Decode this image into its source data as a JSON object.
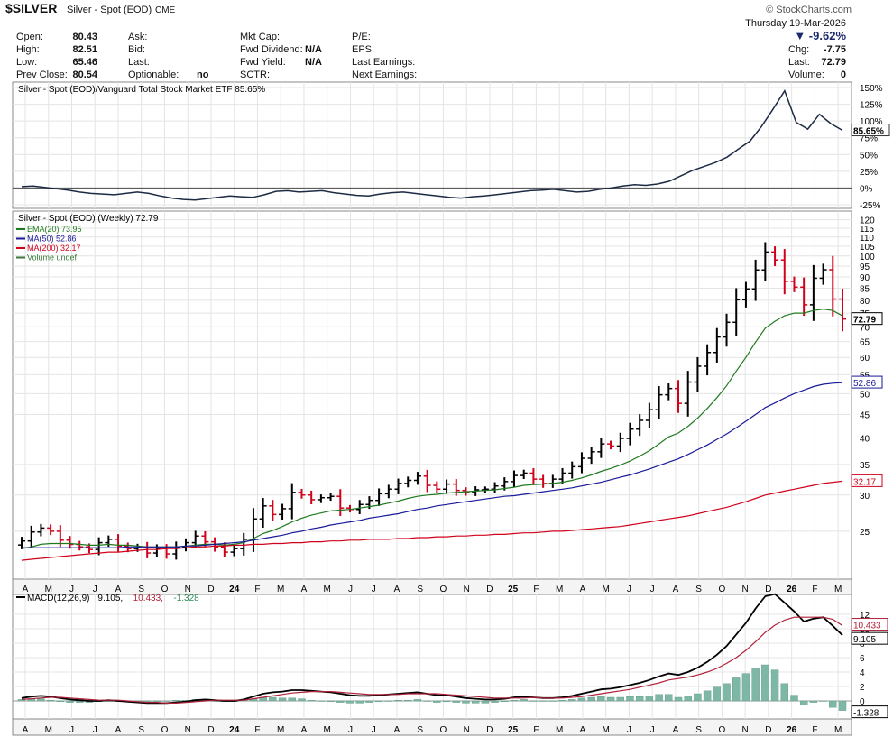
{
  "header": {
    "symbol": "$SILVER",
    "name": "Silver - Spot (EOD)",
    "exchange": "CME",
    "watermark": "© StockCharts.com",
    "date_line": "Thursday 19-Mar-2026",
    "pct_change": "▼ -9.62%"
  },
  "quote": [
    {
      "k": "Open:",
      "v": "80.43"
    },
    {
      "k": "High:",
      "v": "82.51"
    },
    {
      "k": "Low:",
      "v": "65.46"
    },
    {
      "k": "Prev Close:",
      "v": "80.54"
    }
  ],
  "quote2": [
    {
      "k": "Ask:",
      "v": ""
    },
    {
      "k": "Bid:",
      "v": ""
    },
    {
      "k": "Last:",
      "v": ""
    },
    {
      "k": "Optionable:",
      "v": "no"
    }
  ],
  "quote3": [
    {
      "k": "Mkt Cap:",
      "v": ""
    },
    {
      "k": "Fwd Dividend:",
      "v": "N/A"
    },
    {
      "k": "Fwd Yield:",
      "v": "N/A"
    },
    {
      "k": "SCTR:",
      "v": ""
    }
  ],
  "quote4": [
    {
      "k": "P/E:"
    },
    {
      "k": "EPS:"
    },
    {
      "k": "Last Earnings:"
    },
    {
      "k": "Next Earnings:"
    }
  ],
  "quote5": [
    {
      "k": "Chg:",
      "v": "-7.75"
    },
    {
      "k": "Last:",
      "v": "72.79"
    },
    {
      "k": "Volume:",
      "v": "0"
    }
  ],
  "colors": {
    "up": "#000000",
    "down": "#d0021b",
    "ema20": "#1f7a1f",
    "ma50": "#1a1a9a",
    "ma200": "#d0021b",
    "ratio": "#1c2a44",
    "hist": "#7fb7a6",
    "signal": "#b0213a"
  },
  "chart_data": [
    {
      "type": "line",
      "title": "Silver - Spot (EOD)/Vanguard Total Stock Market ETF 85.65%",
      "last_value_label": "85.65%",
      "ylim": [
        -25,
        150
      ],
      "y_ticks": [
        "150%",
        "125%",
        "100%",
        "75%",
        "50%",
        "25%",
        "0%",
        "-25%"
      ],
      "series": [
        {
          "values": [
            2,
            3,
            1,
            -1,
            -3,
            -6,
            -8,
            -9,
            -10,
            -8,
            -6,
            -8,
            -12,
            -15,
            -17,
            -18,
            -16,
            -14,
            -12,
            -13,
            -14,
            -10,
            -5,
            -4,
            -6,
            -5,
            -4,
            -7,
            -9,
            -11,
            -12,
            -9,
            -7,
            -6,
            -8,
            -10,
            -12,
            -14,
            -15,
            -13,
            -12,
            -10,
            -8,
            -6,
            -4,
            -3,
            -2,
            -4,
            -6,
            -5,
            -2,
            0,
            3,
            5,
            4,
            6,
            10,
            18,
            26,
            32,
            38,
            46,
            58,
            70,
            92,
            118,
            145,
            98,
            88,
            110,
            96,
            86
          ]
        }
      ],
      "grid": true
    },
    {
      "type": "line",
      "title": "Silver - Spot (EOD) (Weekly) 72.79",
      "log_scale": true,
      "ylim": [
        20,
        122
      ],
      "y_ticks": [
        120,
        115,
        110,
        105,
        100,
        95,
        90,
        85,
        80,
        75,
        70,
        65,
        60,
        55,
        50,
        45,
        40,
        35,
        30,
        25
      ],
      "last_price_label": "72.79",
      "ma50_label": "52.86",
      "ma200_label": "32.17",
      "legend": [
        {
          "name": "EMA(20) 73.95",
          "color": "#1f7a1f"
        },
        {
          "name": "MA(50) 52.86",
          "color": "#1a1a9a"
        },
        {
          "name": "MA(200) 32.17",
          "color": "#d0021b"
        },
        {
          "name": "Volume undef",
          "color": "#3a7a3a"
        }
      ],
      "series": [
        {
          "name": "Price",
          "values": [
            23.8,
            24.9,
            25.4,
            25.0,
            23.9,
            23.4,
            23.1,
            22.8,
            23.6,
            24.0,
            23.2,
            22.9,
            23.1,
            22.4,
            22.9,
            22.3,
            23.1,
            23.6,
            24.4,
            23.7,
            23.1,
            22.5,
            22.9,
            24.0,
            26.6,
            28.4,
            27.2,
            28.0,
            30.4,
            30.0,
            29.3,
            29.6,
            29.8,
            28.1,
            27.9,
            28.6,
            29.2,
            30.2,
            30.9,
            31.8,
            32.3,
            33.0,
            31.5,
            30.9,
            31.7,
            30.7,
            30.4,
            30.8,
            30.9,
            31.4,
            32.1,
            33.1,
            33.5,
            32.5,
            31.8,
            32.5,
            33.5,
            34.6,
            36.1,
            37.3,
            38.8,
            38.4,
            39.9,
            41.8,
            43.7,
            46.1,
            49.7,
            51.3,
            47.6,
            53.0,
            57.4,
            61.5,
            66.5,
            71.6,
            80.2,
            84.7,
            93.2,
            102.0,
            98.0,
            88.0,
            85.5,
            78.2,
            89.4,
            93.3,
            80.5,
            72.79
          ]
        },
        {
          "name": "EMA(20)",
          "values": [
            22.9,
            23.1,
            23.4,
            23.5,
            23.5,
            23.5,
            23.4,
            23.3,
            23.3,
            23.4,
            23.3,
            23.3,
            23.2,
            23.1,
            23.1,
            23.1,
            23.1,
            23.2,
            23.3,
            23.4,
            23.4,
            23.3,
            23.4,
            23.6,
            24.1,
            24.7,
            25.1,
            25.6,
            26.2,
            26.7,
            27.1,
            27.4,
            27.7,
            27.8,
            27.9,
            28.1,
            28.3,
            28.5,
            28.8,
            29.1,
            29.5,
            29.8,
            30.0,
            30.1,
            30.3,
            30.4,
            30.5,
            30.6,
            30.7,
            30.8,
            31.0,
            31.2,
            31.5,
            31.6,
            31.7,
            31.8,
            32.0,
            32.3,
            32.7,
            33.2,
            33.8,
            34.3,
            34.9,
            35.6,
            36.5,
            37.5,
            38.8,
            40.2,
            41.0,
            42.4,
            44.2,
            46.4,
            49.0,
            52.0,
            56.0,
            60.0,
            64.8,
            69.5,
            72.0,
            74.0,
            75.0,
            75.0,
            76.0,
            76.5,
            76.0,
            73.95
          ]
        },
        {
          "name": "MA(50)",
          "values": [
            23.0,
            23.0,
            23.0,
            23.0,
            23.0,
            23.0,
            23.0,
            23.0,
            23.0,
            23.0,
            23.0,
            23.1,
            23.1,
            23.1,
            23.1,
            23.1,
            23.1,
            23.2,
            23.2,
            23.3,
            23.4,
            23.5,
            23.6,
            23.7,
            23.9,
            24.1,
            24.3,
            24.5,
            24.8,
            25.0,
            25.3,
            25.5,
            25.8,
            26.0,
            26.2,
            26.4,
            26.7,
            26.9,
            27.1,
            27.3,
            27.6,
            27.9,
            28.1,
            28.4,
            28.6,
            28.8,
            29.0,
            29.2,
            29.4,
            29.6,
            29.8,
            29.9,
            30.1,
            30.3,
            30.5,
            30.7,
            30.9,
            31.1,
            31.4,
            31.7,
            32.0,
            32.4,
            32.8,
            33.2,
            33.7,
            34.2,
            34.8,
            35.4,
            36.0,
            36.8,
            37.7,
            38.6,
            39.7,
            40.8,
            42.1,
            43.5,
            45.0,
            46.6,
            47.7,
            48.9,
            50.0,
            50.9,
            51.8,
            52.4,
            52.7,
            52.86
          ]
        },
        {
          "name": "MA(200)",
          "values": [
            21.6,
            21.7,
            21.8,
            21.9,
            22.0,
            22.1,
            22.2,
            22.3,
            22.4,
            22.5,
            22.5,
            22.6,
            22.7,
            22.8,
            22.8,
            22.9,
            22.9,
            23.0,
            23.1,
            23.1,
            23.2,
            23.2,
            23.3,
            23.3,
            23.4,
            23.4,
            23.5,
            23.5,
            23.6,
            23.6,
            23.7,
            23.7,
            23.8,
            23.8,
            23.9,
            23.9,
            24.0,
            24.0,
            24.0,
            24.1,
            24.1,
            24.2,
            24.2,
            24.3,
            24.3,
            24.4,
            24.4,
            24.5,
            24.5,
            24.6,
            24.6,
            24.7,
            24.8,
            24.8,
            24.9,
            25.0,
            25.0,
            25.1,
            25.2,
            25.3,
            25.4,
            25.5,
            25.6,
            25.8,
            26.0,
            26.2,
            26.4,
            26.6,
            26.8,
            27.0,
            27.3,
            27.6,
            27.9,
            28.2,
            28.6,
            29.0,
            29.5,
            30.0,
            30.3,
            30.6,
            30.9,
            31.2,
            31.5,
            31.8,
            32.0,
            32.17
          ]
        }
      ],
      "grid": true
    },
    {
      "type": "line",
      "title": "MACD(12,26,9) 9.105, 10.433, -1.328",
      "legend": [
        {
          "name": "MACD(12,26,9)",
          "color": "#000000"
        },
        {
          "name": "9.105",
          "color": "#000000"
        },
        {
          "name": "10.433",
          "color": "#b0213a"
        },
        {
          "name": "-1.328",
          "color": "#2e8b57"
        }
      ],
      "ylim": [
        -2,
        14
      ],
      "y_ticks": [
        12,
        10,
        8,
        6,
        4,
        2,
        0
      ],
      "value_labels": [
        "10.433",
        "9.105",
        "-1.328"
      ],
      "series": [
        {
          "name": "MACD",
          "values": [
            0.4,
            0.6,
            0.7,
            0.6,
            0.4,
            0.2,
            0.1,
            0.0,
            0.0,
            0.1,
            0.0,
            -0.1,
            -0.2,
            -0.3,
            -0.3,
            -0.3,
            -0.2,
            -0.1,
            0.1,
            0.2,
            0.1,
            0.0,
            0.0,
            0.2,
            0.6,
            1.0,
            1.2,
            1.3,
            1.5,
            1.5,
            1.4,
            1.3,
            1.2,
            1.0,
            0.8,
            0.7,
            0.7,
            0.8,
            0.9,
            1.0,
            1.1,
            1.2,
            1.0,
            0.8,
            0.8,
            0.6,
            0.4,
            0.3,
            0.2,
            0.2,
            0.3,
            0.5,
            0.6,
            0.5,
            0.4,
            0.4,
            0.5,
            0.7,
            1.0,
            1.3,
            1.6,
            1.7,
            1.9,
            2.2,
            2.5,
            2.9,
            3.4,
            3.8,
            3.6,
            4.0,
            4.6,
            5.4,
            6.4,
            7.6,
            9.2,
            10.8,
            12.8,
            14.5,
            14.8,
            13.6,
            12.4,
            11.0,
            11.4,
            11.6,
            10.4,
            9.105
          ]
        },
        {
          "name": "Signal",
          "values": [
            0.2,
            0.3,
            0.4,
            0.5,
            0.5,
            0.4,
            0.3,
            0.2,
            0.1,
            0.1,
            0.1,
            0.0,
            -0.1,
            -0.2,
            -0.2,
            -0.3,
            -0.3,
            -0.2,
            -0.1,
            0.0,
            0.1,
            0.1,
            0.1,
            0.1,
            0.3,
            0.5,
            0.7,
            0.9,
            1.1,
            1.2,
            1.3,
            1.3,
            1.3,
            1.2,
            1.1,
            1.0,
            0.9,
            0.9,
            0.9,
            0.9,
            1.0,
            1.0,
            1.0,
            1.0,
            0.9,
            0.8,
            0.7,
            0.6,
            0.5,
            0.4,
            0.4,
            0.4,
            0.4,
            0.5,
            0.4,
            0.4,
            0.4,
            0.5,
            0.6,
            0.8,
            1.0,
            1.2,
            1.4,
            1.6,
            1.9,
            2.2,
            2.5,
            2.9,
            3.1,
            3.3,
            3.6,
            4.0,
            4.5,
            5.2,
            6.0,
            7.0,
            8.2,
            9.5,
            10.5,
            11.2,
            11.6,
            11.6,
            11.6,
            11.6,
            11.3,
            10.433
          ]
        },
        {
          "name": "Histogram",
          "values": [
            0.2,
            0.3,
            0.3,
            0.1,
            -0.1,
            -0.2,
            -0.2,
            -0.2,
            -0.1,
            0.0,
            -0.1,
            -0.1,
            -0.1,
            -0.1,
            -0.1,
            0.0,
            0.1,
            0.1,
            0.2,
            0.2,
            0.0,
            -0.1,
            -0.1,
            0.1,
            0.3,
            0.5,
            0.5,
            0.4,
            0.4,
            0.3,
            0.1,
            0.0,
            -0.1,
            -0.2,
            -0.3,
            -0.3,
            -0.2,
            -0.1,
            0.0,
            0.1,
            0.1,
            0.2,
            0.0,
            -0.2,
            -0.1,
            -0.2,
            -0.3,
            -0.3,
            -0.3,
            -0.2,
            -0.1,
            0.1,
            0.2,
            0.0,
            0.0,
            0.0,
            0.1,
            0.2,
            0.4,
            0.5,
            0.6,
            0.5,
            0.5,
            0.6,
            0.6,
            0.7,
            0.9,
            0.9,
            0.5,
            0.7,
            1.0,
            1.4,
            1.9,
            2.4,
            3.2,
            3.8,
            4.6,
            5.0,
            4.3,
            2.4,
            0.8,
            -0.6,
            -0.2,
            0.0,
            -0.9,
            -1.328
          ]
        }
      ],
      "grid": true
    }
  ],
  "x_axis_labels": [
    "A",
    "M",
    "J",
    "J",
    "A",
    "S",
    "O",
    "N",
    "D",
    "24",
    "F",
    "M",
    "A",
    "M",
    "J",
    "J",
    "A",
    "S",
    "O",
    "N",
    "D",
    "25",
    "F",
    "M",
    "A",
    "M",
    "J",
    "J",
    "A",
    "S",
    "O",
    "N",
    "D",
    "26",
    "F",
    "M"
  ]
}
